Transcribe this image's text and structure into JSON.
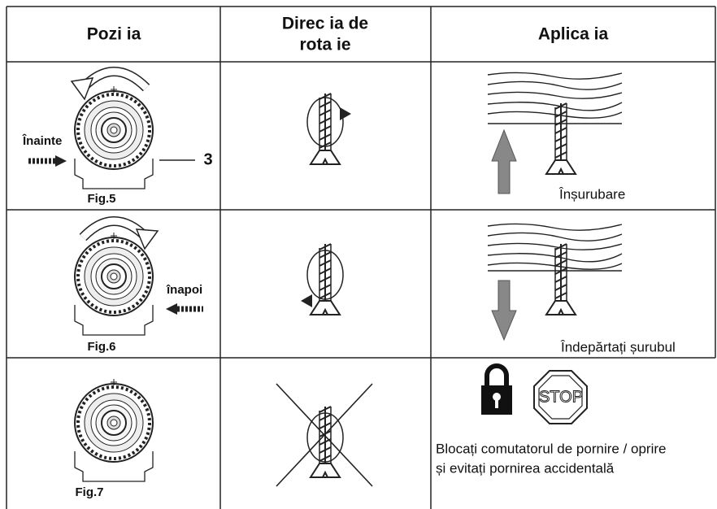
{
  "table": {
    "header": {
      "position": "Pozi ia",
      "direction": [
        "Direc ia  de",
        "rota ie"
      ],
      "application": "Aplica ia"
    },
    "rows": [
      {
        "forward_label": "Înainte",
        "callout": "3",
        "figure": "Fig.5",
        "application_label": "Înșurubare"
      },
      {
        "reverse_label": "înapoi",
        "figure": "Fig.6",
        "application_label": "Îndepărtați șurubul"
      },
      {
        "figure": "Fig.7",
        "stop_sign": "STOP",
        "note": [
          "Blocați comutatorul de pornire / oprire",
          "și evitați pornirea accidentală"
        ]
      }
    ]
  }
}
